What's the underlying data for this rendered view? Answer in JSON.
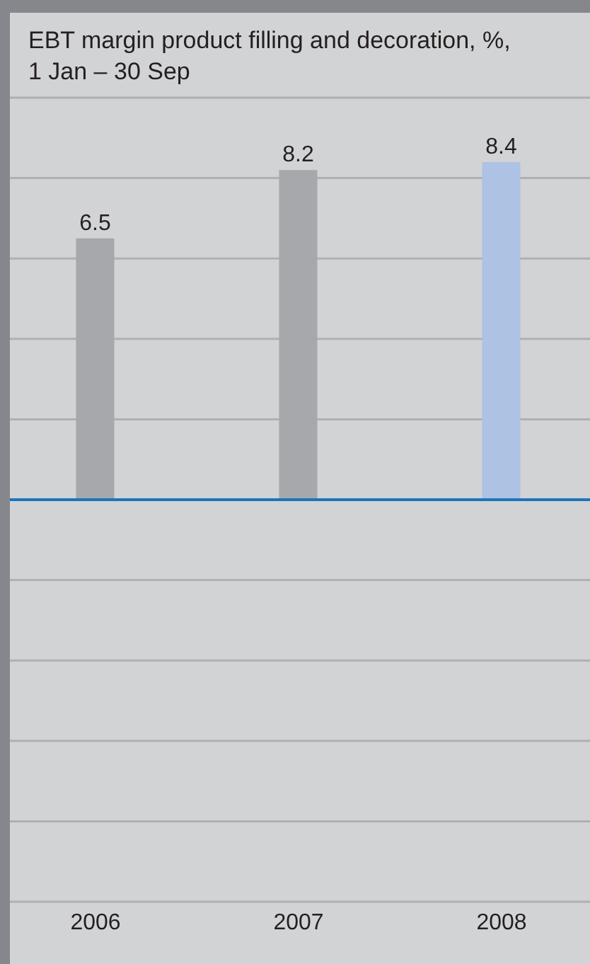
{
  "chart_data": {
    "type": "bar",
    "title": "EBT margin product filling and decoration, %, 1 Jan – 30 Sep",
    "categories": [
      "2006",
      "2007",
      "2008"
    ],
    "values": [
      6.5,
      8.2,
      8.4
    ],
    "colors": [
      "#a7a8ab",
      "#a7a8ab",
      "#aec2e3"
    ],
    "ylim": [
      -10,
      10
    ],
    "yticks": [
      {
        "value": -10,
        "label": null
      },
      {
        "value": -8,
        "label": null
      },
      {
        "value": -6,
        "label": null
      },
      {
        "value": -4,
        "label": null
      },
      {
        "value": -2,
        "label": null
      },
      {
        "value": 0,
        "label": null
      },
      {
        "value": 2,
        "label": null
      },
      {
        "value": 4,
        "label": null
      },
      {
        "value": 6,
        "label": null
      },
      {
        "value": 8,
        "label": null
      },
      {
        "value": 10,
        "label": null
      }
    ],
    "grid": "y",
    "tick_labels": "x",
    "data_labels": true,
    "ref_lines": [
      {
        "axis": "y",
        "value": 0,
        "color": "#1b75bc"
      }
    ]
  }
}
